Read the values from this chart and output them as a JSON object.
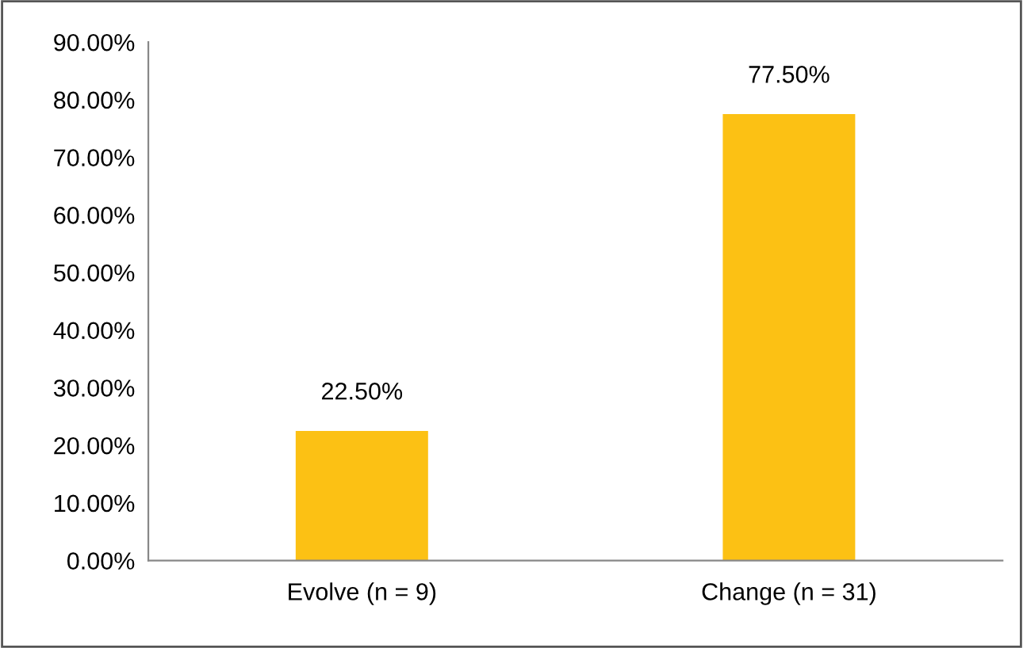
{
  "chart_data": {
    "type": "bar",
    "categories": [
      "Evolve (n = 9)",
      "Change (n = 31)"
    ],
    "values": [
      22.5,
      77.5
    ],
    "value_labels": [
      "22.50%",
      "77.50%"
    ],
    "color": "#fcc114",
    "ylim": [
      0,
      90
    ],
    "yticks": [
      {
        "value": 0,
        "label": "0.00%"
      },
      {
        "value": 10,
        "label": "10.00%"
      },
      {
        "value": 20,
        "label": "20.00%"
      },
      {
        "value": 30,
        "label": "30.00%"
      },
      {
        "value": 40,
        "label": "40.00%"
      },
      {
        "value": 50,
        "label": "50.00%"
      },
      {
        "value": 60,
        "label": "60.00%"
      },
      {
        "value": 70,
        "label": "70.00%"
      },
      {
        "value": 80,
        "label": "80.00%"
      },
      {
        "value": 90,
        "label": "90.00%"
      }
    ],
    "grid": false,
    "legend": false
  }
}
